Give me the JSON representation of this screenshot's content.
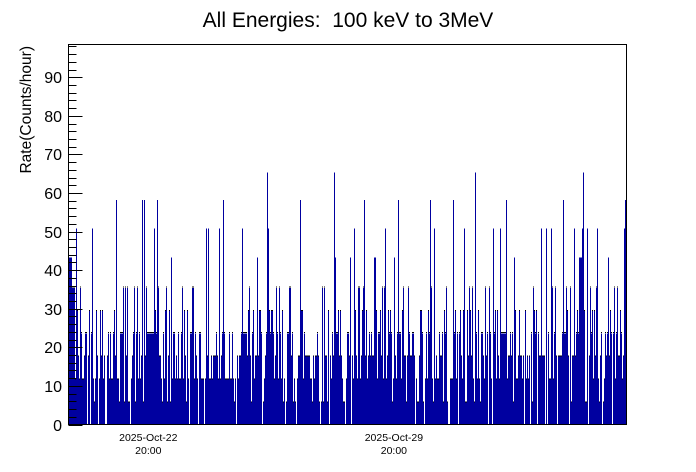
{
  "title": "All Energies:  100 keV to 3MeV",
  "chart_data": {
    "type": "bar",
    "title": "All Energies:  100 keV to 3MeV",
    "ylabel": "Rate(Counts/hour)",
    "xlabel": "",
    "ylim": [
      0,
      98.5
    ],
    "grid": false,
    "legend": "none",
    "y_major_ticks": [
      0,
      10,
      20,
      30,
      40,
      50,
      60,
      70,
      80,
      90
    ],
    "y_minor_step": 2,
    "y_minor_max": 98,
    "x_labels": [
      {
        "date": "2025-Oct-22",
        "time": "20:00",
        "frac": 0.1431
      },
      {
        "date": "2025-Oct-29",
        "time": "20:00",
        "frac": 0.5832
      }
    ],
    "x_label_interval_days": 7,
    "x_day_frac": 0.06313,
    "columns": 557,
    "seed": 42,
    "levels": [
      {
        "value": 0,
        "p": 0.06
      },
      {
        "value": 5.8,
        "p": 0.1
      },
      {
        "value": 11.8,
        "p": 0.21
      },
      {
        "value": 17.8,
        "p": 0.21
      },
      {
        "value": 23.8,
        "p": 0.18
      },
      {
        "value": 29.6,
        "p": 0.11
      },
      {
        "value": 35.6,
        "p": 0.09
      },
      {
        "value": 43.5,
        "p": 0.028
      },
      {
        "value": 51.0,
        "p": 0.006
      },
      {
        "value": 58.3,
        "p": 0.004
      },
      {
        "value": 65.5,
        "p": 0.002
      }
    ],
    "spikes": [
      {
        "col": 7,
        "value": 51.0
      },
      {
        "col": 23,
        "value": 51.0
      },
      {
        "col": 85,
        "value": 51.0
      },
      {
        "col": 139,
        "value": 51.0
      },
      {
        "col": 150,
        "value": 51.0
      },
      {
        "col": 173,
        "value": 51.0
      },
      {
        "col": 285,
        "value": 51.0
      },
      {
        "col": 316,
        "value": 51.0
      },
      {
        "col": 365,
        "value": 51.0
      },
      {
        "col": 395,
        "value": 51.0
      },
      {
        "col": 424,
        "value": 51.0
      },
      {
        "col": 431,
        "value": 51.0
      },
      {
        "col": 472,
        "value": 51.0
      },
      {
        "col": 477,
        "value": 51.0
      },
      {
        "col": 482,
        "value": 51.0
      },
      {
        "col": 505,
        "value": 51.0
      },
      {
        "col": 513,
        "value": 51.0
      },
      {
        "col": 528,
        "value": 51.0
      },
      {
        "col": 555,
        "value": 51.0
      },
      {
        "col": 47,
        "value": 58.3
      },
      {
        "col": 73,
        "value": 58.3
      },
      {
        "col": 154,
        "value": 58.3
      },
      {
        "col": 231,
        "value": 58.3
      },
      {
        "col": 295,
        "value": 58.3
      },
      {
        "col": 329,
        "value": 58.3
      },
      {
        "col": 361,
        "value": 58.3
      },
      {
        "col": 384,
        "value": 58.3
      },
      {
        "col": 494,
        "value": 58.3
      },
      {
        "col": 198,
        "value": 65.5
      },
      {
        "col": 265,
        "value": 65.5
      },
      {
        "col": 406,
        "value": 65.5
      },
      {
        "col": 514,
        "value": 65.5
      }
    ],
    "blocks": [
      {
        "col": 0,
        "w": 3,
        "value": 43.5
      },
      {
        "col": 3,
        "w": 3,
        "value": 35.6
      },
      {
        "col": 78,
        "w": 7,
        "value": 23.8
      },
      {
        "col": 172,
        "w": 6,
        "value": 23.8
      },
      {
        "col": 432,
        "w": 5,
        "value": 23.8
      }
    ],
    "colors": {
      "bar_fill": "#0000a0",
      "bar_edge": "#000000",
      "frame": "#000000",
      "background": "#ffffff"
    }
  }
}
